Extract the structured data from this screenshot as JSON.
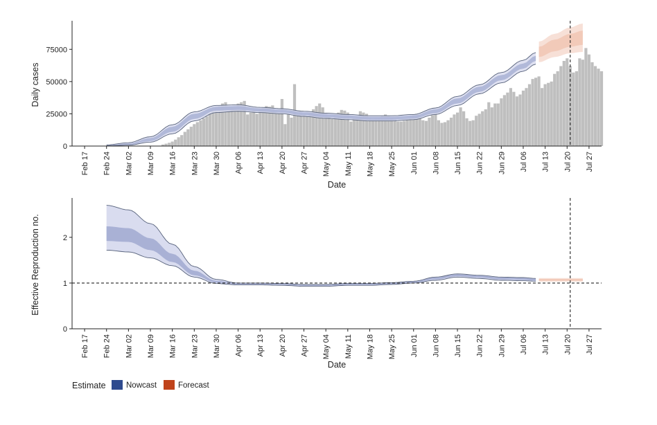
{
  "colors": {
    "bars": "#bfbfbf",
    "nowcast_outer": "#d9dcef",
    "nowcast_inner": "#a9b1d5",
    "nowcast_line": "#55607a",
    "forecast_outer": "#f6ddd3",
    "forecast_inner": "#efc0ad",
    "nowcast_legend": "#2f4b8f",
    "forecast_legend": "#c0431b"
  },
  "x_ticks": [
    "Feb 17",
    "Feb 24",
    "Mar 02",
    "Mar 09",
    "Mar 16",
    "Mar 23",
    "Mar 30",
    "Apr 06",
    "Apr 13",
    "Apr 20",
    "Apr 27",
    "May 04",
    "May 11",
    "May 18",
    "May 25",
    "Jun 01",
    "Jun 08",
    "Jun 15",
    "Jun 22",
    "Jun 29",
    "Jul 06",
    "Jul 13",
    "Jul 20",
    "Jul 27"
  ],
  "legend": {
    "title": "Estimate",
    "items": [
      {
        "label": "Nowcast",
        "color": "#2f4b8f"
      },
      {
        "label": "Forecast",
        "color": "#c0431b"
      }
    ]
  },
  "chart_data": [
    {
      "type": "bar",
      "xlabel": "Date",
      "ylabel": "Daily cases",
      "ylim": [
        0,
        95000
      ],
      "y_ticks": [
        0,
        25000,
        50000,
        75000
      ],
      "x_start": "2020-02-20",
      "bars_start": "2020-03-08",
      "bars": [
        0,
        0,
        0,
        0,
        0,
        1200,
        1800,
        2500,
        3500,
        5000,
        6800,
        8500,
        11000,
        13000,
        15000,
        17000,
        18500,
        20000,
        21500,
        23000,
        25000,
        27500,
        29500,
        31000,
        33000,
        34000,
        31000,
        30000,
        30000,
        33000,
        34000,
        35000,
        24500,
        26000,
        28000,
        25000,
        28500,
        30000,
        31000,
        30500,
        31500,
        26500,
        25500,
        36500,
        17000,
        24500,
        22000,
        48000,
        25000,
        26500,
        24000,
        23000,
        25500,
        28500,
        31000,
        33000,
        30000,
        25000,
        22500,
        21000,
        24500,
        26000,
        28000,
        27500,
        26000,
        19000,
        21500,
        23000,
        27000,
        26000,
        25000,
        22000,
        20500,
        21500,
        22000,
        23500,
        24500,
        23500,
        22000,
        20500,
        19000,
        19000,
        19500,
        20500,
        22000,
        24500,
        25000,
        22000,
        20000,
        19500,
        22000,
        24000,
        26000,
        20000,
        18000,
        18500,
        20000,
        22000,
        24500,
        26000,
        30000,
        27000,
        21500,
        19500,
        20000,
        23500,
        25000,
        27000,
        28500,
        34000,
        30000,
        33000,
        33000,
        37000,
        39500,
        41500,
        45000,
        42000,
        38500,
        40000,
        43000,
        45000,
        48000,
        52000,
        53000,
        54000,
        45000,
        48000,
        49000,
        50000,
        56000,
        58000,
        62000,
        66000,
        68000,
        62000,
        57000,
        58000,
        68000,
        67000,
        76000,
        71000,
        65000,
        62000,
        60000,
        58000
      ],
      "estimate_start": "2020-02-24",
      "estimate_anchors": [
        [
          "2020-02-24",
          500,
          300,
          700,
          200,
          900
        ],
        [
          "2020-03-02",
          1500,
          1000,
          2000,
          700,
          2600
        ],
        [
          "2020-03-09",
          5000,
          3800,
          6200,
          3000,
          7200
        ],
        [
          "2020-03-16",
          13000,
          11000,
          15000,
          9500,
          16500
        ],
        [
          "2020-03-23",
          23000,
          21000,
          25000,
          19500,
          26500
        ],
        [
          "2020-03-30",
          29000,
          27500,
          30500,
          26000,
          31500
        ],
        [
          "2020-04-06",
          29500,
          28000,
          31000,
          27000,
          32000
        ],
        [
          "2020-04-13",
          28000,
          26800,
          29200,
          26000,
          30000
        ],
        [
          "2020-04-20",
          27000,
          25800,
          28200,
          25000,
          29000
        ],
        [
          "2020-04-27",
          25000,
          23800,
          26200,
          23000,
          27000
        ],
        [
          "2020-05-04",
          23500,
          22300,
          24700,
          21500,
          25500
        ],
        [
          "2020-05-11",
          22500,
          21300,
          23700,
          20500,
          24500
        ],
        [
          "2020-05-18",
          21500,
          20300,
          22700,
          19500,
          23500
        ],
        [
          "2020-05-25",
          21500,
          20300,
          22700,
          19500,
          23500
        ],
        [
          "2020-06-01",
          22500,
          21300,
          23700,
          20500,
          24500
        ],
        [
          "2020-06-08",
          27000,
          25500,
          28500,
          24500,
          29500
        ],
        [
          "2020-06-15",
          35000,
          33000,
          37000,
          31500,
          38500
        ],
        [
          "2020-06-22",
          44000,
          42000,
          46000,
          40500,
          47500
        ],
        [
          "2020-06-29",
          53000,
          51000,
          55000,
          49000,
          57000
        ],
        [
          "2020-07-06",
          62000,
          60000,
          64000,
          58000,
          66500
        ],
        [
          "2020-07-10",
          68000,
          66000,
          70000,
          63500,
          72500
        ]
      ],
      "forecast_anchors": [
        [
          "2020-07-11",
          73000,
          69000,
          77000,
          65000,
          81000
        ],
        [
          "2020-07-16",
          78000,
          73500,
          82500,
          69000,
          87000
        ],
        [
          "2020-07-21",
          82000,
          77000,
          87000,
          72000,
          92000
        ],
        [
          "2020-07-25",
          84000,
          78500,
          89500,
          73000,
          95000
        ]
      ],
      "vline": "2020-07-21"
    },
    {
      "type": "area",
      "xlabel": "Date",
      "ylabel": "Effective Reproduction no.",
      "ylim": [
        0,
        2.8
      ],
      "y_ticks": [
        0,
        1,
        2
      ],
      "hline": 1,
      "estimate_anchors": [
        [
          "2020-02-24",
          2.08,
          1.92,
          2.24,
          1.72,
          2.7
        ],
        [
          "2020-03-02",
          2.05,
          1.9,
          2.2,
          1.68,
          2.6
        ],
        [
          "2020-03-09",
          1.85,
          1.72,
          1.98,
          1.55,
          2.3
        ],
        [
          "2020-03-16",
          1.55,
          1.46,
          1.64,
          1.38,
          1.85
        ],
        [
          "2020-03-23",
          1.22,
          1.17,
          1.27,
          1.13,
          1.36
        ],
        [
          "2020-03-30",
          1.03,
          1.01,
          1.05,
          0.99,
          1.08
        ],
        [
          "2020-04-06",
          0.98,
          0.97,
          0.99,
          0.96,
          1.0
        ],
        [
          "2020-04-13",
          0.98,
          0.97,
          0.99,
          0.96,
          1.0
        ],
        [
          "2020-04-20",
          0.97,
          0.96,
          0.98,
          0.95,
          0.99
        ],
        [
          "2020-04-27",
          0.95,
          0.94,
          0.96,
          0.93,
          0.97
        ],
        [
          "2020-05-04",
          0.95,
          0.94,
          0.96,
          0.93,
          0.97
        ],
        [
          "2020-05-11",
          0.97,
          0.96,
          0.98,
          0.95,
          0.99
        ],
        [
          "2020-05-18",
          0.97,
          0.96,
          0.98,
          0.95,
          0.99
        ],
        [
          "2020-05-25",
          0.99,
          0.98,
          1.0,
          0.97,
          1.01
        ],
        [
          "2020-06-01",
          1.02,
          1.01,
          1.03,
          1.0,
          1.04
        ],
        [
          "2020-06-08",
          1.1,
          1.08,
          1.12,
          1.06,
          1.13
        ],
        [
          "2020-06-15",
          1.17,
          1.15,
          1.19,
          1.13,
          1.2
        ],
        [
          "2020-06-22",
          1.14,
          1.12,
          1.16,
          1.1,
          1.17
        ],
        [
          "2020-06-29",
          1.1,
          1.08,
          1.12,
          1.06,
          1.13
        ],
        [
          "2020-07-06",
          1.09,
          1.07,
          1.11,
          1.05,
          1.12
        ],
        [
          "2020-07-10",
          1.07,
          1.05,
          1.09,
          1.04,
          1.1
        ]
      ],
      "forecast_anchors": [
        [
          "2020-07-11",
          1.07,
          1.05,
          1.09,
          1.03,
          1.11
        ],
        [
          "2020-07-25",
          1.07,
          1.05,
          1.09,
          1.03,
          1.11
        ]
      ],
      "vline": "2020-07-21"
    }
  ]
}
